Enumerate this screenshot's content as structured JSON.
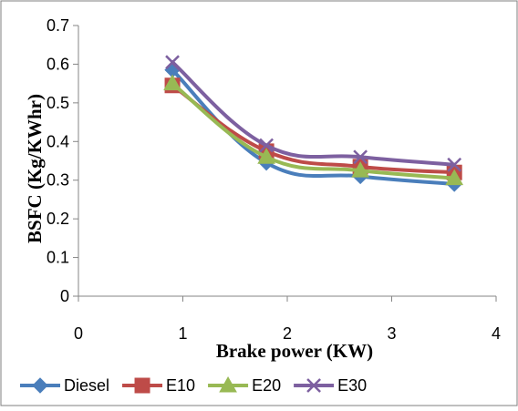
{
  "chart_data": {
    "type": "line",
    "title": "",
    "xlabel": "Brake power (KW)",
    "ylabel": "BSFC (Kg/KWhr)",
    "xlim": [
      0,
      4
    ],
    "ylim": [
      0,
      0.7
    ],
    "x_ticks": [
      "0",
      "1",
      "2",
      "3",
      "4"
    ],
    "y_ticks": [
      "0",
      "0.1",
      "0.2",
      "0.3",
      "0.4",
      "0.5",
      "0.6",
      "0.7"
    ],
    "x_tick_values": [
      0,
      1,
      2,
      3,
      4
    ],
    "y_tick_values": [
      0,
      0.1,
      0.2,
      0.3,
      0.4,
      0.5,
      0.6,
      0.7
    ],
    "grid": false,
    "legend_position": "bottom",
    "x": [
      0.9,
      1.8,
      2.7,
      3.6
    ],
    "series": [
      {
        "name": "Diesel",
        "values": [
          0.585,
          0.345,
          0.31,
          0.29
        ],
        "color": "#4a7ebb",
        "marker": "diamond"
      },
      {
        "name": "E10",
        "values": [
          0.545,
          0.375,
          0.335,
          0.32
        ],
        "color": "#be4b48",
        "marker": "square"
      },
      {
        "name": "E20",
        "values": [
          0.55,
          0.36,
          0.325,
          0.305
        ],
        "color": "#98b954",
        "marker": "triangle"
      },
      {
        "name": "E30",
        "values": [
          0.605,
          0.39,
          0.36,
          0.34
        ],
        "color": "#7d60a0",
        "marker": "x"
      }
    ]
  }
}
